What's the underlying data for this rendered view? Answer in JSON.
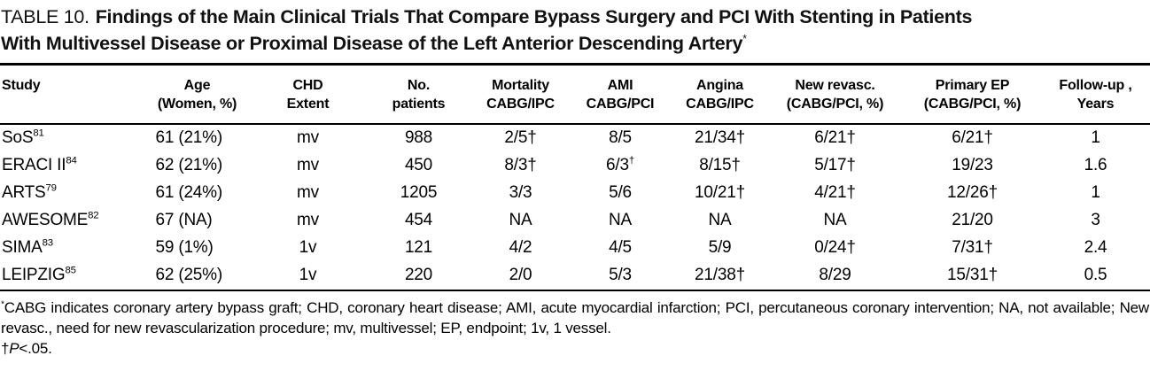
{
  "caption": {
    "label": "TABLE 10.",
    "title_line1": "Findings of the Main Clinical Trials That Compare Bypass Surgery and PCI With Stenting in Patients",
    "title_line2": "With Multivessel Disease or Proximal Disease of the Left Anterior Descending Artery",
    "title_marker": "*"
  },
  "table": {
    "columns": [
      {
        "line1": "Study",
        "line2": ""
      },
      {
        "line1": "Age",
        "line2": "(Women, %)"
      },
      {
        "line1": "CHD",
        "line2": "Extent"
      },
      {
        "line1": "No.",
        "line2": "patients"
      },
      {
        "line1": "Mortality",
        "line2": "CABG/IPC"
      },
      {
        "line1": "AMI",
        "line2": "CABG/PCI"
      },
      {
        "line1": "Angina",
        "line2": "CABG/IPC"
      },
      {
        "line1": "New revasc.",
        "line2": "(CABG/PCI, %)"
      },
      {
        "line1": "Primary EP",
        "line2": "(CABG/PCI, %)"
      },
      {
        "line1": "Follow-up ,",
        "line2": "Years"
      }
    ],
    "rows": [
      {
        "study": "SoS",
        "ref": "81",
        "age": "61 (21%)",
        "chd": "mv",
        "n": "988",
        "mortality": "2/5†",
        "ami": "8/5",
        "angina": "21/34†",
        "new_revasc": "6/21†",
        "primary_ep": "6/21†",
        "followup": "1"
      },
      {
        "study": "ERACI II",
        "ref": "84",
        "age": "62 (21%)",
        "chd": "mv",
        "n": "450",
        "mortality": "8/3†",
        "ami": "6/3",
        "ami_sup": "†",
        "angina": "8/15†",
        "new_revasc": "5/17†",
        "primary_ep": "19/23",
        "followup": "1.6"
      },
      {
        "study": "ARTS",
        "ref": "79",
        "age": "61 (24%)",
        "chd": "mv",
        "n": "1205",
        "mortality": "3/3",
        "ami": "5/6",
        "angina": "10/21†",
        "new_revasc": "4/21†",
        "primary_ep": "12/26†",
        "followup": "1"
      },
      {
        "study": "AWESOME",
        "ref": "82",
        "age": "67 (NA)",
        "chd": "mv",
        "n": "454",
        "mortality": "NA",
        "ami": "NA",
        "angina": "NA",
        "new_revasc": "NA",
        "primary_ep": "21/20",
        "followup": "3"
      },
      {
        "study": "SIMA",
        "ref": "83",
        "age": "59 (1%)",
        "chd": "1v",
        "n": "121",
        "mortality": "4/2",
        "ami": "4/5",
        "angina": "5/9",
        "new_revasc": "0/24†",
        "primary_ep": "7/31†",
        "followup": "2.4"
      },
      {
        "study": "LEIPZIG",
        "ref": "85",
        "age": "62 (25%)",
        "chd": "1v",
        "n": "220",
        "mortality": "2/0",
        "ami": "5/3",
        "angina": "21/38†",
        "new_revasc": "8/29",
        "primary_ep": "15/31†",
        "followup": "0.5"
      }
    ]
  },
  "footnote": {
    "marker": "*",
    "text": "CABG indicates coronary artery bypass graft; CHD, coronary heart disease; AMI, acute myocardial infarction; PCI, percutaneous coronary intervention; NA, not available; New revasc., need for new revascularization procedure; mv, multivessel; EP, endpoint; 1v, 1 vessel.",
    "sig_marker": "†",
    "sig_p": "P",
    "sig_value": "<.05."
  }
}
